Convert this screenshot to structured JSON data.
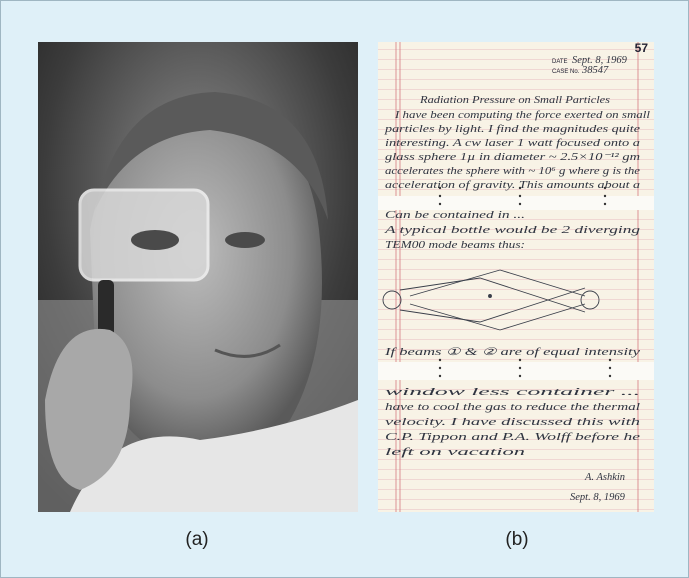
{
  "panels": [
    {
      "label": "(a)"
    },
    {
      "label": "(b)",
      "notebook": {
        "page_number": "57",
        "date_label": "DATE",
        "date": "Sept. 8, 1969",
        "case_label": "CASE No.",
        "case": "38547",
        "lines": [
          "Radiation Pressure on Small Particles",
          "I have been computing the force exerted on small",
          "particles by light. I find the magnitudes quite",
          "interesting. A cw laser 1 watt focused onto a",
          "glass sphere 1µ in diameter ~ 2.5×10⁻¹² gm",
          "accelerates the sphere with ~ 10⁶ g where g is the",
          "acceleration of gravity. This amounts about a",
          "Can be contained in ...",
          "A typical bottle would be 2 diverging",
          "TEM00 mode beams thus:",
          "If beams ① & ② are of equal intensity",
          "window less container ...",
          "have to cool the gas to reduce the thermal",
          "velocity. I have discussed this with",
          "C.P. Tippon and P.A. Wolff before he",
          "left on vacation"
        ],
        "signature": "A. Ashkin",
        "signature_date": "Sept. 8, 1969"
      }
    }
  ]
}
